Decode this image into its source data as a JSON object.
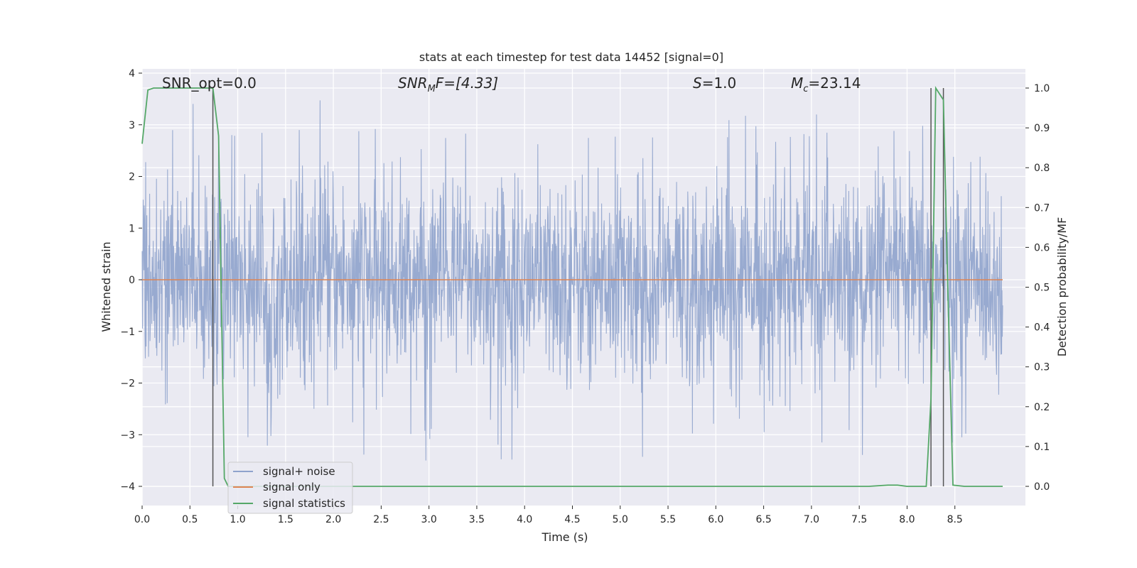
{
  "chart_data": {
    "type": "line",
    "title": "stats at each timestep for test data 14452 [signal=0]",
    "xlabel": "Time (s)",
    "ylabel_left": "Whitened strain",
    "ylabel_right": "Detection probability/MF",
    "xlim": [
      0.0,
      9.0
    ],
    "ylim_left": [
      -4.4,
      4.1
    ],
    "ylim_right": [
      -0.045,
      1.045
    ],
    "x_ticks": [
      "0.0",
      "0.5",
      "1.0",
      "1.5",
      "2.0",
      "2.5",
      "3.0",
      "3.5",
      "4.0",
      "4.5",
      "5.0",
      "5.5",
      "6.0",
      "6.5",
      "7.0",
      "7.5",
      "8.0",
      "8.5"
    ],
    "y_ticks_left": [
      "−4",
      "−3",
      "−2",
      "−1",
      "0",
      "1",
      "2",
      "3",
      "4"
    ],
    "y_ticks_right": [
      "0.0",
      "0.1",
      "0.2",
      "0.3",
      "0.4",
      "0.5",
      "0.6",
      "0.7",
      "0.8",
      "0.9",
      "1.0"
    ],
    "grid": true,
    "legend_placement": "lower-left",
    "annotations": {
      "snr_opt": "SNR_opt=0.0",
      "snr_mf_main": "SNR",
      "snr_mf_sub": "M",
      "snr_mf_rest": "F=[4.33]",
      "s_main": "S",
      "s_rest": "=1.0",
      "mc_main": "M",
      "mc_sub": "c",
      "mc_rest": "=23.14"
    },
    "series": [
      {
        "name": "signal+ noise",
        "color": "#8fa3cc",
        "description_values": "noisy whitened strain, roughly within [-2.5, 2.5] with occasional spikes to ±3.5",
        "envelope_typical": 1.6,
        "spike_max": 3.7,
        "spike_min": -3.5
      },
      {
        "name": "signal only",
        "color": "#dd8452",
        "x": [
          0.0,
          9.0
        ],
        "y": [
          0.0,
          0.0
        ]
      },
      {
        "name": "signal statistics",
        "color": "#55a868",
        "x": [
          0.0,
          0.06,
          0.12,
          0.2,
          0.3,
          0.4,
          0.5,
          0.6,
          0.68,
          0.74,
          0.8,
          0.86,
          0.9,
          1.0,
          2.0,
          3.0,
          4.0,
          5.0,
          6.0,
          7.0,
          7.6,
          7.8,
          7.9,
          8.0,
          8.2,
          8.25,
          8.3,
          8.38,
          8.42,
          8.48,
          8.6,
          9.0
        ],
        "y": [
          0.86,
          0.995,
          1.0,
          1.0,
          1.0,
          1.0,
          1.0,
          1.0,
          1.0,
          1.0,
          0.88,
          0.02,
          0.0,
          0.0,
          0.0,
          0.0,
          0.0,
          0.0,
          0.0,
          0.0,
          0.0,
          0.003,
          0.003,
          0.0,
          0.0,
          0.22,
          1.0,
          0.97,
          0.55,
          0.003,
          0.0,
          0.0
        ]
      }
    ],
    "vertical_lines": [
      0.74,
      8.25,
      8.38
    ],
    "vertical_line_color": "#555555",
    "colors": {
      "plot_bg": "#eaeaf2",
      "grid": "#ffffff"
    }
  }
}
